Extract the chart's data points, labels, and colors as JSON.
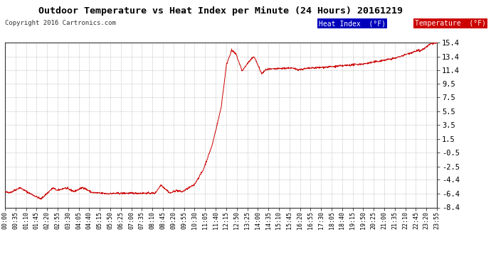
{
  "title": "Outdoor Temperature vs Heat Index per Minute (24 Hours) 20161219",
  "copyright": "Copyright 2016 Cartronics.com",
  "background_color": "#ffffff",
  "plot_background": "#ffffff",
  "line_color": "#cc0000",
  "grid_color": "#aaaaaa",
  "ylim": [
    -8.4,
    15.4
  ],
  "yticks": [
    -8.4,
    -6.4,
    -4.4,
    -2.5,
    -0.5,
    1.5,
    3.5,
    5.5,
    7.5,
    9.5,
    11.4,
    13.4,
    15.4
  ],
  "ylabel_values": [
    "-8.4",
    "-6.4",
    "-4.4",
    "-2.5",
    "-0.5",
    "1.5",
    "3.5",
    "5.5",
    "7.5",
    "9.5",
    "11.4",
    "13.4",
    "15.4"
  ],
  "legend_heat_index_bg": "#0000bb",
  "legend_temp_bg": "#cc0000",
  "legend_heat_index_label": "Heat Index  (°F)",
  "legend_temp_label": "Temperature  (°F)",
  "xtick_labels": [
    "00:00",
    "00:35",
    "01:10",
    "01:45",
    "02:20",
    "02:55",
    "03:30",
    "04:05",
    "04:40",
    "05:15",
    "05:50",
    "06:25",
    "07:00",
    "07:35",
    "08:10",
    "08:45",
    "09:20",
    "09:55",
    "10:30",
    "11:05",
    "11:40",
    "12:15",
    "12:50",
    "13:25",
    "14:00",
    "14:35",
    "15:10",
    "15:45",
    "16:20",
    "16:55",
    "17:30",
    "18:05",
    "18:40",
    "19:15",
    "19:50",
    "20:25",
    "21:00",
    "21:35",
    "22:10",
    "22:45",
    "23:20",
    "23:55"
  ]
}
